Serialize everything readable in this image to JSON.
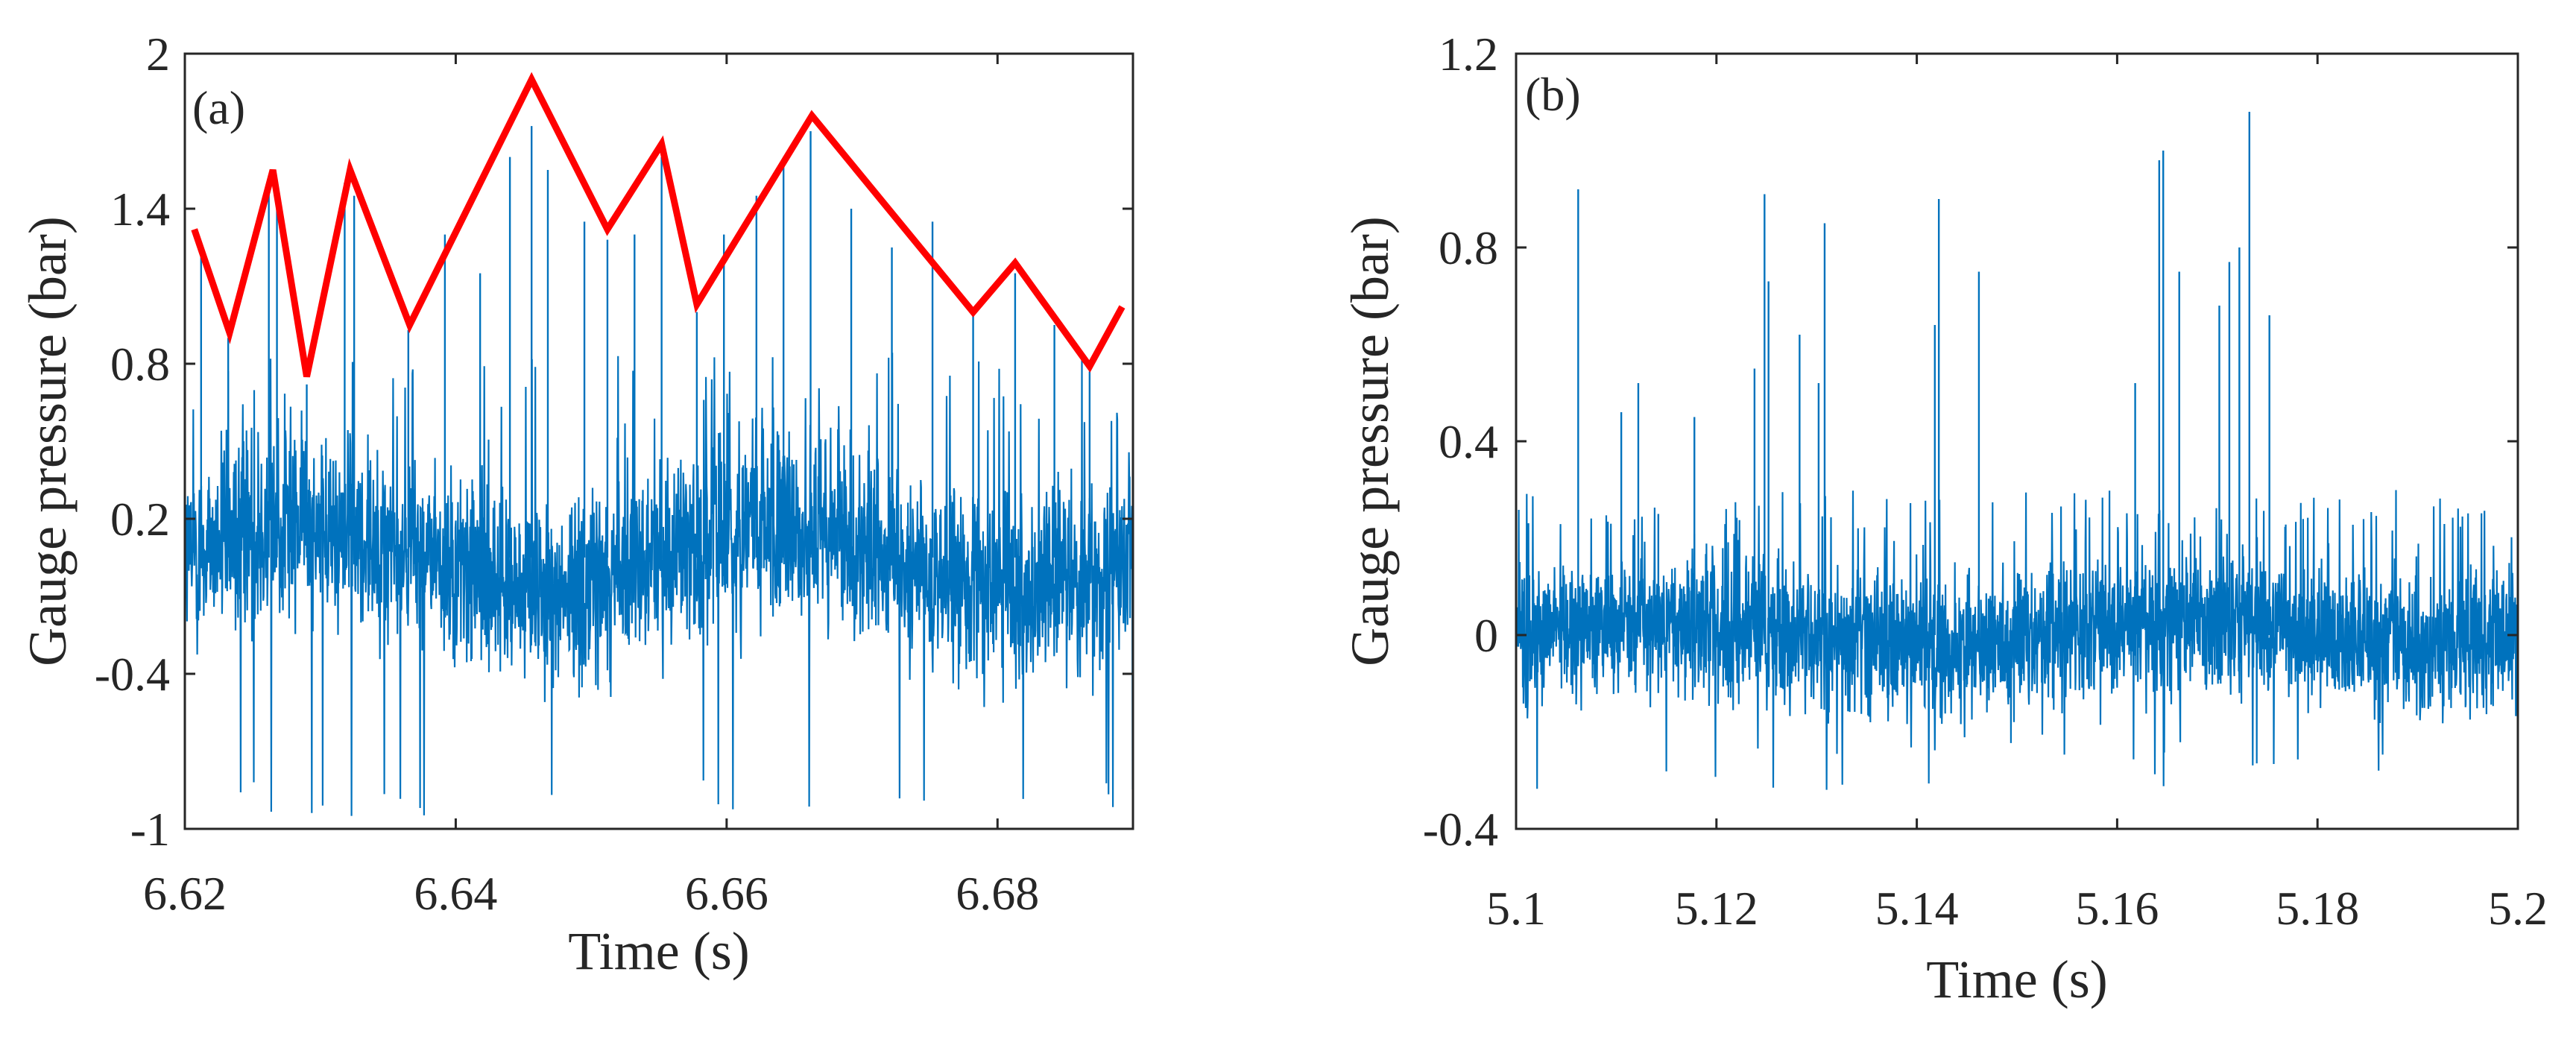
{
  "chart_data": [
    {
      "type": "line",
      "panel_label": "(a)",
      "xlabel": "Time (s)",
      "ylabel": "Gauge pressure (bar)",
      "xlim": [
        6.62,
        6.69
      ],
      "ylim": [
        -1,
        2
      ],
      "xticks": [
        6.62,
        6.64,
        6.66,
        6.68
      ],
      "xtick_labels": [
        "6.62",
        "6.64",
        "6.66",
        "6.68"
      ],
      "yticks": [
        -1,
        -0.4,
        0.2,
        0.8,
        1.4,
        2
      ],
      "ytick_labels": [
        "-1",
        "-0.4",
        "0.2",
        "0.8",
        "1.4",
        "2"
      ],
      "colors": {
        "signal": "#0072BD",
        "envelope": "#FF0000"
      },
      "series": [
        {
          "name": "pressure signal",
          "style": "dense noisy signal",
          "baseline": 0.05,
          "noise_range": [
            -0.45,
            0.5
          ],
          "min": -0.95,
          "spikes_x": [
            6.6212,
            6.6232,
            6.6262,
            6.6268,
            6.629,
            6.6318,
            6.6325,
            6.6365,
            6.6392,
            6.6418,
            6.644,
            6.6456,
            6.6468,
            6.6495,
            6.6512,
            6.6532,
            6.6552,
            6.6578,
            6.6598,
            6.6622,
            6.6642,
            6.6662,
            6.6692,
            6.6722,
            6.6752,
            6.6782,
            6.6813,
            6.6842,
            6.6868
          ],
          "spikes_y": [
            1.25,
            0.9,
            1.5,
            1.45,
            0.72,
            1.5,
            1.45,
            0.93,
            1.3,
            1.15,
            1.6,
            1.72,
            1.55,
            1.35,
            1.28,
            1.3,
            1.6,
            1.0,
            1.3,
            1.45,
            1.6,
            1.7,
            1.4,
            1.25,
            1.35,
            1.0,
            1.15,
            0.95,
            0.77
          ]
        },
        {
          "name": "peak envelope",
          "x": [
            6.6207,
            6.6233,
            6.6265,
            6.629,
            6.6322,
            6.6366,
            6.6456,
            6.6512,
            6.6552,
            6.6578,
            6.6663,
            6.6782,
            6.6813,
            6.6868,
            6.6892
          ],
          "y": [
            1.32,
            0.92,
            1.55,
            0.75,
            1.55,
            0.95,
            1.9,
            1.32,
            1.65,
            1.03,
            1.76,
            1.0,
            1.19,
            0.79,
            1.02
          ]
        }
      ]
    },
    {
      "type": "line",
      "panel_label": "(b)",
      "xlabel": "Time (s)",
      "ylabel": "Gauge pressure (bar)",
      "xlim": [
        5.1,
        5.2
      ],
      "ylim": [
        -0.4,
        1.2
      ],
      "xticks": [
        5.1,
        5.12,
        5.14,
        5.16,
        5.18,
        5.2
      ],
      "xtick_labels": [
        "5.1",
        "5.12",
        "5.14",
        "5.16",
        "5.18",
        "5.2"
      ],
      "yticks": [
        -0.4,
        0,
        0.4,
        0.8,
        1.2
      ],
      "ytick_labels": [
        "-0.4",
        "0",
        "0.4",
        "0.8",
        "1.2"
      ],
      "colors": {
        "signal": "#0072BD"
      },
      "series": [
        {
          "name": "pressure signal",
          "style": "dense noisy signal",
          "baseline": 0.0,
          "noise_range": [
            -0.2,
            0.18
          ],
          "min": -0.32,
          "spikes_x": [
            5.1062,
            5.1105,
            5.1122,
            5.1142,
            5.1178,
            5.1238,
            5.1248,
            5.1252,
            5.1283,
            5.1302,
            5.1308,
            5.1418,
            5.1422,
            5.1462,
            5.1618,
            5.1642,
            5.1646,
            5.1662,
            5.1702,
            5.1712,
            5.1722,
            5.1732,
            5.1752
          ],
          "spikes_y": [
            0.92,
            0.46,
            0.52,
            0.25,
            0.45,
            0.55,
            0.91,
            0.73,
            0.62,
            0.52,
            0.85,
            0.64,
            0.9,
            0.75,
            0.52,
            0.98,
            1.0,
            0.75,
            0.68,
            0.77,
            0.8,
            1.08,
            0.66
          ]
        }
      ]
    }
  ]
}
